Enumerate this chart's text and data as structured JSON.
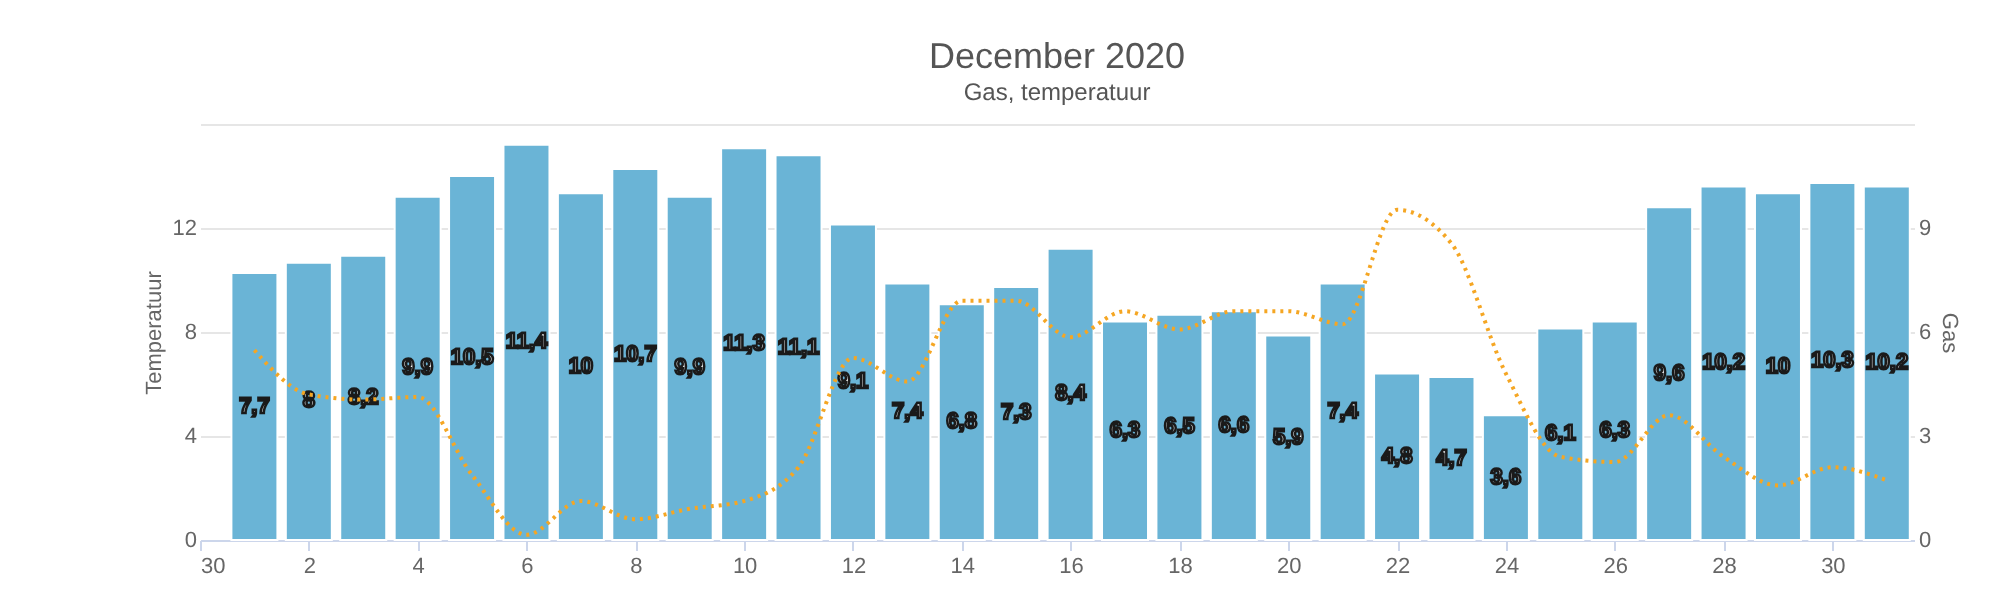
{
  "chart_data": {
    "type": "bar",
    "title": "December 2020",
    "subtitle": "Gas, temperatuur",
    "ylabel": "Temperatuur",
    "y2label": "Gas",
    "x": [
      "2020-12-01",
      "2020-12-02",
      "2020-12-03",
      "2020-12-04",
      "2020-12-05",
      "2020-12-06",
      "2020-12-07",
      "2020-12-08",
      "2020-12-09",
      "2020-12-10",
      "2020-12-11",
      "2020-12-12",
      "2020-12-13",
      "2020-12-14",
      "2020-12-15",
      "2020-12-16",
      "2020-12-17",
      "2020-12-18",
      "2020-12-19",
      "2020-12-20",
      "2020-12-21",
      "2020-12-22",
      "2020-12-23",
      "2020-12-24",
      "2020-12-25",
      "2020-12-26",
      "2020-12-27",
      "2020-12-28",
      "2020-12-29",
      "2020-12-30",
      "2020-12-31"
    ],
    "xlim": [
      "2020-11-30",
      "2020-12-31T12:00"
    ],
    "xticks": [
      {
        "value": "2020-11-30",
        "label": "30"
      },
      {
        "value": "2020-12-02",
        "label": "2"
      },
      {
        "value": "2020-12-04",
        "label": "4"
      },
      {
        "value": "2020-12-06",
        "label": "6"
      },
      {
        "value": "2020-12-08",
        "label": "8"
      },
      {
        "value": "2020-12-10",
        "label": "10"
      },
      {
        "value": "2020-12-12",
        "label": "12"
      },
      {
        "value": "2020-12-14",
        "label": "14"
      },
      {
        "value": "2020-12-16",
        "label": "16"
      },
      {
        "value": "2020-12-18",
        "label": "18"
      },
      {
        "value": "2020-12-20",
        "label": "20"
      },
      {
        "value": "2020-12-22",
        "label": "22"
      },
      {
        "value": "2020-12-24",
        "label": "24"
      },
      {
        "value": "2020-12-26",
        "label": "26"
      },
      {
        "value": "2020-12-28",
        "label": "28"
      },
      {
        "value": "2020-12-30",
        "label": "30"
      }
    ],
    "ylim": [
      0,
      16
    ],
    "yticks": [
      0,
      4,
      8,
      12,
      {
        "value": 16,
        "label": null
      }
    ],
    "y2lim": [
      0,
      12
    ],
    "y2ticks": [
      0,
      3,
      6,
      9
    ],
    "grid": "y",
    "legend": false,
    "series": [
      {
        "axis": "y2",
        "color": "#6ab4d6",
        "values": [
          7.7,
          8,
          8.2,
          9.9,
          10.5,
          11.4,
          10,
          10.7,
          9.9,
          11.3,
          11.1,
          9.1,
          7.4,
          6.8,
          7.3,
          8.4,
          6.3,
          6.5,
          6.6,
          5.9,
          7.4,
          4.8,
          4.7,
          3.6,
          6.1,
          6.3,
          9.6,
          10.2,
          10,
          10.3,
          10.2
        ],
        "value_labels": [
          "7,7",
          "8",
          "8,2",
          "9,9",
          "10,5",
          "11,4",
          "10",
          "10,7",
          "9,9",
          "11,3",
          "11,1",
          "9,1",
          "7,4",
          "6,8",
          "7,3",
          "8,4",
          "6,3",
          "6,5",
          "6,6",
          "5,9",
          "7,4",
          "4,8",
          "4,7",
          "3,6",
          "6,1",
          "6,3",
          "9,6",
          "10,2",
          "10",
          "10,3",
          "10,2"
        ]
      },
      {
        "type": "line",
        "color": "#f5a623",
        "line_style": "dotted",
        "marker": "none",
        "values": [
          7.3,
          5.6,
          5.4,
          5.5,
          2.5,
          0.2,
          1.5,
          0.8,
          1.2,
          1.5,
          2.8,
          7.0,
          6.1,
          9.2,
          9.2,
          7.8,
          8.8,
          8.1,
          8.8,
          8.8,
          8.3,
          12.7,
          11.4,
          6.4,
          3.2,
          3.0,
          4.8,
          3.2,
          2.1,
          2.8,
          2.3
        ]
      }
    ]
  }
}
